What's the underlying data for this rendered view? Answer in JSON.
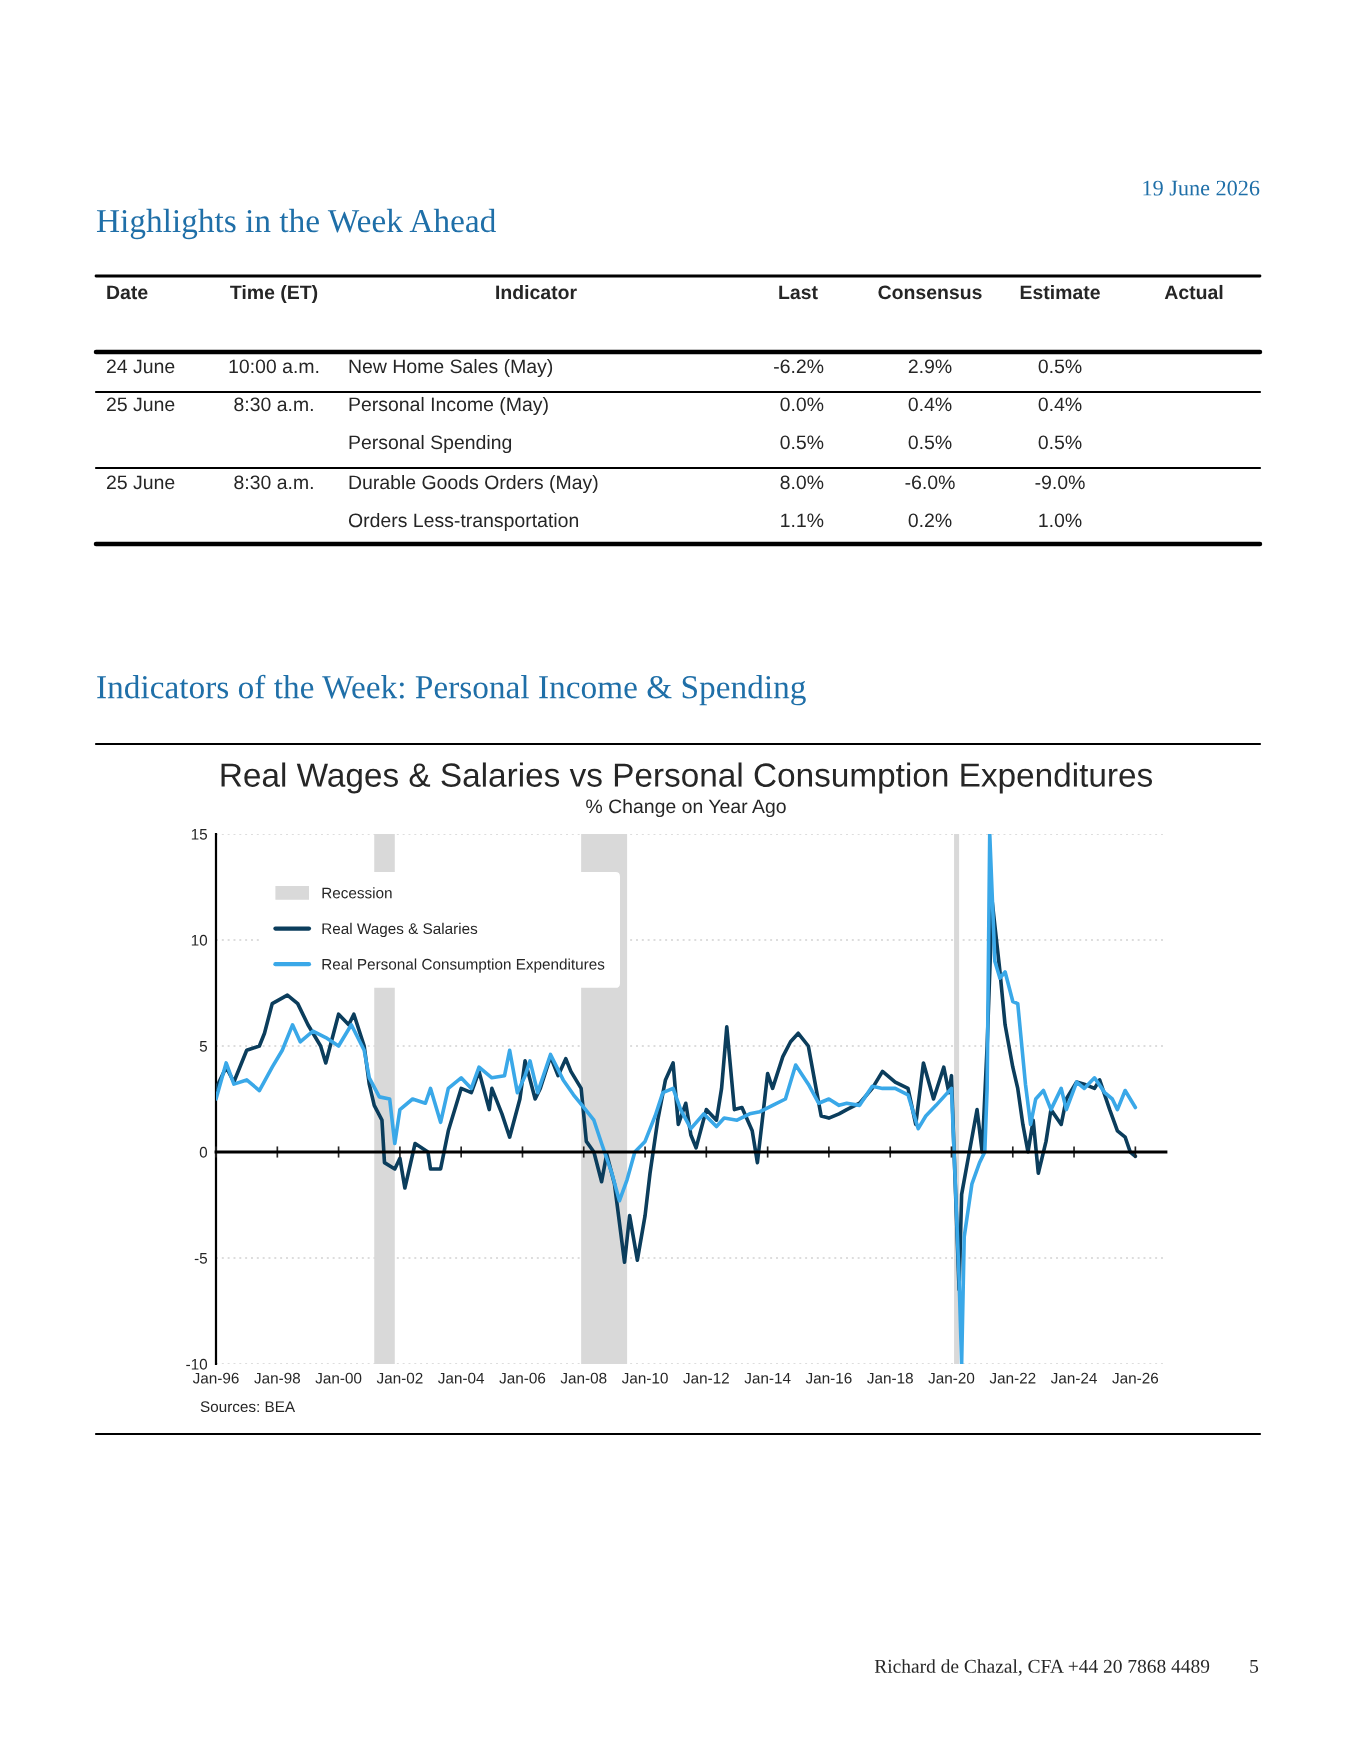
{
  "chart_data": [
    {
      "type": "other",
      "title": "Highlights in the Week Ahead",
      "annotations": [
        "19 June 2026",
        "Date",
        "Time (ET)",
        "Indicator",
        "Last",
        "Consensus",
        "Estimate",
        "Actual",
        "24 June",
        "10:00 a.m.",
        "New Home Sales (May)",
        "-6.2%",
        "2.9%",
        "0.5%",
        "25 June",
        "8:30 a.m.",
        "Personal Income (May)",
        "0.0%",
        "0.4%",
        "0.4%",
        "Personal Spending",
        "0.5%",
        "0.5%",
        "0.5%",
        "25 June",
        "8:30 a.m.",
        "Durable Goods Orders (May)",
        "8.0%",
        "-6.0%",
        "-9.0%",
        "Orders Less-transportation",
        "1.1%",
        "0.2%",
        "1.0%"
      ]
    },
    {
      "type": "line",
      "title": "Real Wages & Salaries vs Personal Consumption Expenditures",
      "subtitle": "% Change on Year Ago",
      "annotations": [
        "Indicators of the Week: Personal Income & Spending",
        "Sources: BEA",
        "Richard de Chazal, CFA +44 20 7868 4489",
        "5"
      ],
      "xlim": [
        "1996-01",
        "2027-01"
      ],
      "xticks": [
        {
          "value": "1996-01",
          "label": "Jan-96"
        },
        {
          "value": "1998-01",
          "label": "Jan-98"
        },
        {
          "value": "2000-01",
          "label": "Jan-00"
        },
        {
          "value": "2002-01",
          "label": "Jan-02"
        },
        {
          "value": "2004-01",
          "label": "Jan-04"
        },
        {
          "value": "2006-01",
          "label": "Jan-06"
        },
        {
          "value": "2008-01",
          "label": "Jan-08"
        },
        {
          "value": "2010-01",
          "label": "Jan-10"
        },
        {
          "value": "2012-01",
          "label": "Jan-12"
        },
        {
          "value": "2014-01",
          "label": "Jan-14"
        },
        {
          "value": "2016-01",
          "label": "Jan-16"
        },
        {
          "value": "2018-01",
          "label": "Jan-18"
        },
        {
          "value": "2020-01",
          "label": "Jan-20"
        },
        {
          "value": "2022-01",
          "label": "Jan-22"
        },
        {
          "value": "2024-01",
          "label": "Jan-24"
        },
        {
          "value": "2026-01",
          "label": "Jan-26"
        }
      ],
      "ylim": [
        -10,
        15
      ],
      "yticks": [
        -10,
        -5,
        0,
        5,
        10,
        15
      ],
      "grid": "y",
      "legend": "top left",
      "marker": "none",
      "line_style": "solid",
      "bands": [
        {
          "axis": "x",
          "from": "2001-03",
          "to": "2001-11",
          "label": "Recession",
          "color": "#d9d9d9"
        },
        {
          "axis": "x",
          "from": "2007-12",
          "to": "2009-06",
          "color": "#d9d9d9"
        },
        {
          "axis": "x",
          "from": "2020-02",
          "to": "2020-04",
          "color": "#d9d9d9"
        }
      ],
      "series": [
        {
          "name": "Real Wages & Salaries",
          "color": "#0b3d5c",
          "x": [
            "1996-01",
            "1996-05",
            "1996-08",
            "1997-01",
            "1997-06",
            "1997-08",
            "1997-11",
            "1998-05",
            "1998-09",
            "1999-01",
            "1999-06",
            "1999-08",
            "2000-01",
            "2000-05",
            "2000-07",
            "2000-11",
            "2001-01",
            "2001-03",
            "2001-06",
            "2001-07",
            "2001-11",
            "2002-01",
            "2002-03",
            "2002-07",
            "2002-12",
            "2003-01",
            "2003-05",
            "2003-08",
            "2004-01",
            "2004-05",
            "2004-08",
            "2004-12",
            "2005-01",
            "2005-05",
            "2005-08",
            "2005-12",
            "2006-02",
            "2006-06",
            "2006-08",
            "2006-12",
            "2007-03",
            "2007-06",
            "2007-08",
            "2007-12",
            "2008-02",
            "2008-05",
            "2008-08",
            "2008-10",
            "2009-01",
            "2009-05",
            "2009-07",
            "2009-10",
            "2010-01",
            "2010-03",
            "2010-06",
            "2010-09",
            "2010-12",
            "2011-02",
            "2011-05",
            "2011-07",
            "2011-09",
            "2012-01",
            "2012-05",
            "2012-07",
            "2012-09",
            "2012-12",
            "2013-03",
            "2013-07",
            "2013-09",
            "2014-01",
            "2014-03",
            "2014-07",
            "2014-10",
            "2015-01",
            "2015-05",
            "2015-08",
            "2015-10",
            "2016-01",
            "2016-05",
            "2016-08",
            "2017-01",
            "2017-06",
            "2017-10",
            "2018-03",
            "2018-08",
            "2018-11",
            "2019-02",
            "2019-06",
            "2019-10",
            "2019-12",
            "2020-01",
            "2020-02",
            "2020-04",
            "2020-05",
            "2020-08",
            "2020-11",
            "2021-01",
            "2021-03",
            "2021-05",
            "2021-08",
            "2021-10",
            "2022-01",
            "2022-03",
            "2022-05",
            "2022-07",
            "2022-09",
            "2022-11",
            "2023-02",
            "2023-04",
            "2023-08",
            "2023-10",
            "2024-02",
            "2024-05",
            "2024-09",
            "2024-11",
            "2025-03",
            "2025-06",
            "2025-09",
            "2025-11",
            "2026-01"
          ],
          "values": [
            3.0,
            4.0,
            3.3,
            4.8,
            5.0,
            5.6,
            7.0,
            7.4,
            7.0,
            6.0,
            5.0,
            4.2,
            6.5,
            6.0,
            6.5,
            5.0,
            3.2,
            2.2,
            1.5,
            -0.5,
            -0.8,
            -0.3,
            -1.7,
            0.4,
            0.0,
            -0.8,
            -0.8,
            1.0,
            3.0,
            2.8,
            3.8,
            2.0,
            3.0,
            1.8,
            0.7,
            2.5,
            4.3,
            2.5,
            3.0,
            4.5,
            3.6,
            4.4,
            3.8,
            3.0,
            0.5,
            0.0,
            -1.4,
            -0.1,
            -1.5,
            -5.2,
            -3.0,
            -5.1,
            -3.0,
            -1.0,
            1.5,
            3.4,
            4.2,
            1.3,
            2.3,
            0.8,
            0.2,
            2.0,
            1.5,
            3.0,
            5.9,
            2.0,
            2.1,
            1.0,
            -0.5,
            3.7,
            3.0,
            4.5,
            5.2,
            5.6,
            5.0,
            3.0,
            1.7,
            1.6,
            1.8,
            2.0,
            2.3,
            3.0,
            3.8,
            3.3,
            3.0,
            1.3,
            4.2,
            2.5,
            4.0,
            2.8,
            3.6,
            0.0,
            -6.5,
            -2.0,
            0.0,
            2.0,
            0.0,
            5.0,
            11.8,
            8.5,
            6.0,
            4.0,
            3.0,
            1.3,
            0.0,
            1.5,
            -1.0,
            0.5,
            2.0,
            1.3,
            2.5,
            3.3,
            3.2,
            3.0,
            3.4,
            2.0,
            1.0,
            0.7,
            0.0,
            -0.2
          ]
        },
        {
          "name": "Real Personal Consumption Expenditures",
          "color": "#3aa8e8",
          "x": [
            "1996-01",
            "1996-05",
            "1996-08",
            "1997-01",
            "1997-06",
            "1997-11",
            "1998-03",
            "1998-07",
            "1998-10",
            "1999-03",
            "1999-08",
            "2000-01",
            "2000-06",
            "2000-11",
            "2001-01",
            "2001-05",
            "2001-09",
            "2001-11",
            "2002-01",
            "2002-06",
            "2002-11",
            "2003-01",
            "2003-05",
            "2003-08",
            "2004-01",
            "2004-05",
            "2004-08",
            "2005-01",
            "2005-06",
            "2005-08",
            "2005-11",
            "2006-02",
            "2006-04",
            "2006-07",
            "2006-12",
            "2007-05",
            "2007-09",
            "2008-01",
            "2008-05",
            "2008-08",
            "2008-12",
            "2009-03",
            "2009-06",
            "2009-09",
            "2010-01",
            "2010-05",
            "2010-08",
            "2010-12",
            "2011-03",
            "2011-07",
            "2011-12",
            "2012-05",
            "2012-08",
            "2013-01",
            "2013-06",
            "2013-10",
            "2014-03",
            "2014-08",
            "2014-12",
            "2015-05",
            "2015-09",
            "2016-01",
            "2016-05",
            "2016-08",
            "2017-01",
            "2017-06",
            "2017-10",
            "2018-03",
            "2018-08",
            "2018-12",
            "2019-03",
            "2019-07",
            "2019-10",
            "2020-01",
            "2020-02",
            "2020-04",
            "2020-05",
            "2020-06",
            "2020-09",
            "2020-12",
            "2021-02",
            "2021-03",
            "2021-04",
            "2021-06",
            "2021-08",
            "2021-10",
            "2022-01",
            "2022-03",
            "2022-06",
            "2022-08",
            "2022-10",
            "2023-01",
            "2023-04",
            "2023-08",
            "2023-10",
            "2024-02",
            "2024-05",
            "2024-09",
            "2025-01",
            "2025-04",
            "2025-06",
            "2025-09",
            "2026-01"
          ],
          "values": [
            2.5,
            4.2,
            3.2,
            3.4,
            2.9,
            4.0,
            4.8,
            6.0,
            5.2,
            5.7,
            5.4,
            5.0,
            6.0,
            4.8,
            3.5,
            2.6,
            2.5,
            0.4,
            2.0,
            2.5,
            2.3,
            3.0,
            1.4,
            3.0,
            3.5,
            3.0,
            4.0,
            3.5,
            3.6,
            4.8,
            2.8,
            3.6,
            4.3,
            2.8,
            4.6,
            3.4,
            2.7,
            2.1,
            1.5,
            0.4,
            -1.0,
            -2.3,
            -1.3,
            0.0,
            0.5,
            1.7,
            2.8,
            3.0,
            2.0,
            1.1,
            1.8,
            1.2,
            1.6,
            1.5,
            1.8,
            1.9,
            2.2,
            2.5,
            4.1,
            3.2,
            2.3,
            2.5,
            2.2,
            2.3,
            2.2,
            3.1,
            3.0,
            3.0,
            2.7,
            1.1,
            1.7,
            2.2,
            2.6,
            3.0,
            0.0,
            -6.0,
            -10.0,
            -4.0,
            -1.5,
            -0.5,
            0.0,
            3.0,
            15.0,
            9.0,
            8.2,
            8.5,
            7.1,
            7.0,
            3.2,
            1.3,
            2.5,
            2.9,
            2.0,
            3.0,
            2.0,
            3.3,
            3.0,
            3.5,
            2.8,
            2.5,
            2.0,
            2.9,
            2.1
          ]
        }
      ]
    }
  ]
}
